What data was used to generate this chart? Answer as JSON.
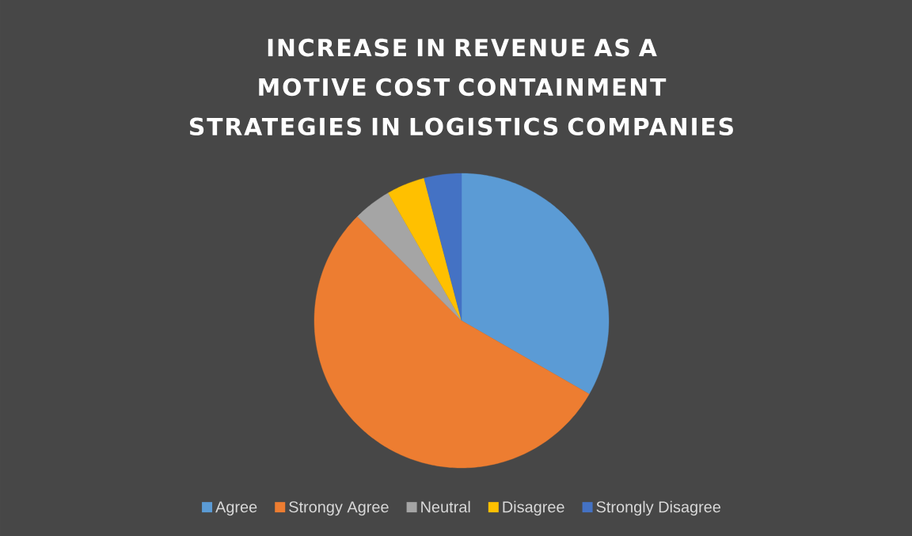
{
  "chart_data": {
    "type": "pie",
    "title": "INCREASE IN REVENUE AS A MOTIVE COST CONTAINMENT STRATEGIES IN LOGISTICS COMPANIES",
    "categories": [
      "Agree",
      "Strongy Agree",
      "Neutral",
      "Disagree",
      "Strongly Disagree"
    ],
    "values": [
      33.3,
      54.2,
      4.2,
      4.2,
      4.1
    ],
    "colors": [
      "#5b9bd5",
      "#ed7d31",
      "#a5a5a5",
      "#ffc000",
      "#4472c4"
    ],
    "legend": "bottom"
  }
}
